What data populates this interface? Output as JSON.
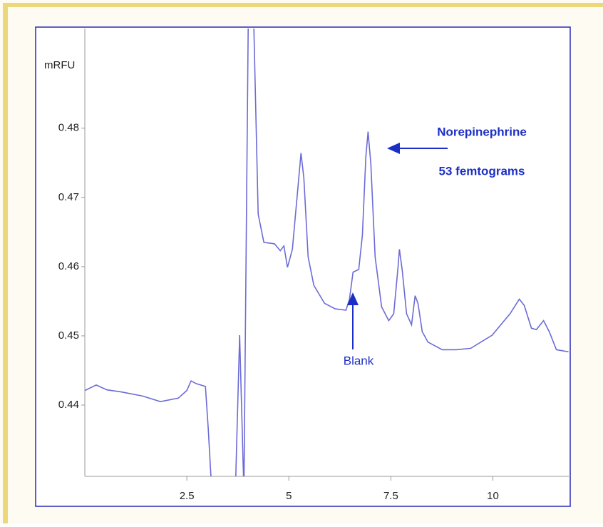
{
  "chart_data": {
    "type": "line",
    "ylabel": "mRFU",
    "x": [
      0,
      0.28,
      0.542,
      0.892,
      1.416,
      1.853,
      2.29,
      2.5,
      2.605,
      2.727,
      2.955,
      3.024,
      3.112,
      3.689,
      3.794,
      3.899,
      4.003,
      4.073,
      4.143,
      4.248,
      4.388,
      4.65,
      4.79,
      4.878,
      4.965,
      5.087,
      5.227,
      5.297,
      5.367,
      5.472,
      5.612,
      5.874,
      6.136,
      6.399,
      6.486,
      6.573,
      6.713,
      6.801,
      6.888,
      6.941,
      7.01,
      7.115,
      7.273,
      7.448,
      7.57,
      7.675,
      7.71,
      7.78,
      7.885,
      8.007,
      8.094,
      8.164,
      8.269,
      8.409,
      8.759,
      9.108,
      9.458,
      9.983,
      10.42,
      10.647,
      10.769,
      10.944,
      11.066,
      11.241,
      11.381,
      11.556,
      11.853
    ],
    "series": [
      {
        "color": "#6b6bd6",
        "values": [
          0.4421,
          0.4429,
          0.4422,
          0.4419,
          0.4413,
          0.4405,
          0.441,
          0.4421,
          0.4435,
          0.4431,
          0.4427,
          0.4367,
          0.4274,
          0.4274,
          0.4501,
          0.4274,
          0.4944,
          0.4965,
          0.4944,
          0.4676,
          0.4635,
          0.4633,
          0.4623,
          0.463,
          0.4599,
          0.4625,
          0.4718,
          0.4764,
          0.4728,
          0.4614,
          0.4573,
          0.4547,
          0.4539,
          0.4537,
          0.4553,
          0.4592,
          0.4596,
          0.4645,
          0.4759,
          0.4795,
          0.4748,
          0.4614,
          0.4542,
          0.4522,
          0.4532,
          0.4599,
          0.4625,
          0.4594,
          0.4532,
          0.4516,
          0.4558,
          0.4547,
          0.4506,
          0.4491,
          0.448,
          0.448,
          0.4482,
          0.4501,
          0.4532,
          0.4553,
          0.4544,
          0.4511,
          0.4509,
          0.4522,
          0.4506,
          0.448,
          0.4477
        ]
      }
    ],
    "xlim": [
      0,
      11.86
    ],
    "xticks": [
      2.5,
      5,
      7.5,
      10
    ],
    "ylim": [
      0.4297,
      0.4944
    ],
    "yticks": [
      0.44,
      0.45,
      0.46,
      0.47,
      0.48
    ],
    "annotations": [
      "Norepinephrine",
      "53 femtograms",
      "Blank"
    ]
  }
}
